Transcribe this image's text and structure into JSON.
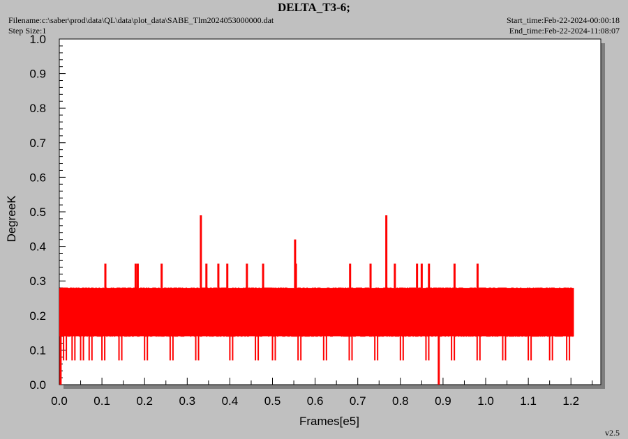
{
  "header": {
    "filename": "Filename:c:\\saber\\prod\\data\\QL\\data\\plot_data\\SABE_Tlm2024053000000.dat",
    "step_size": "Step Size:1",
    "start_time": "Start_time:Feb-22-2024-00:00:18",
    "end_time": "End_time:Feb-22-2024-11:08:07"
  },
  "version": "v2.5",
  "chart_data": {
    "type": "line",
    "title": "DELTA_T3-6;",
    "xlabel": "Frames[e5]",
    "ylabel": "DegreeK",
    "xlim": [
      0.0,
      1.27
    ],
    "ylim": [
      0.0,
      1.0
    ],
    "x_ticks": [
      "0.0",
      "0.1",
      "0.2",
      "0.3",
      "0.4",
      "0.5",
      "0.6",
      "0.7",
      "0.8",
      "0.9",
      "1.0",
      "1.1",
      "1.2"
    ],
    "y_ticks": [
      "0.0",
      "0.1",
      "0.2",
      "0.3",
      "0.4",
      "0.5",
      "0.6",
      "0.7",
      "0.8",
      "0.9",
      "1.0"
    ],
    "grid": false,
    "line_color": "#ff0000",
    "series": [
      {
        "x_range": [
          0.0,
          1.207
        ],
        "baseline_band": [
          0.14,
          0.28
        ],
        "typical_values": [
          0.14,
          0.21,
          0.28
        ],
        "spikes": [
          {
            "x": 0.003,
            "y": 0.0
          },
          {
            "x": 0.108,
            "y": 0.35
          },
          {
            "x": 0.179,
            "y": 0.35
          },
          {
            "x": 0.184,
            "y": 0.35
          },
          {
            "x": 0.24,
            "y": 0.35
          },
          {
            "x": 0.332,
            "y": 0.49
          },
          {
            "x": 0.345,
            "y": 0.35
          },
          {
            "x": 0.373,
            "y": 0.35
          },
          {
            "x": 0.394,
            "y": 0.35
          },
          {
            "x": 0.44,
            "y": 0.35
          },
          {
            "x": 0.478,
            "y": 0.35
          },
          {
            "x": 0.553,
            "y": 0.42
          },
          {
            "x": 0.555,
            "y": 0.35
          },
          {
            "x": 0.682,
            "y": 0.35
          },
          {
            "x": 0.73,
            "y": 0.35
          },
          {
            "x": 0.767,
            "y": 0.49
          },
          {
            "x": 0.787,
            "y": 0.35
          },
          {
            "x": 0.839,
            "y": 0.35
          },
          {
            "x": 0.85,
            "y": 0.35
          },
          {
            "x": 0.867,
            "y": 0.35
          },
          {
            "x": 0.89,
            "y": 0.0
          },
          {
            "x": 0.927,
            "y": 0.35
          },
          {
            "x": 0.981,
            "y": 0.35
          }
        ],
        "dips": [
          {
            "x": 0.01,
            "y": 0.07
          },
          {
            "x": 0.03,
            "y": 0.07
          },
          {
            "x": 0.05,
            "y": 0.07
          },
          {
            "x": 0.07,
            "y": 0.07
          },
          {
            "x": 0.1,
            "y": 0.07
          },
          {
            "x": 0.14,
            "y": 0.07
          },
          {
            "x": 0.2,
            "y": 0.07
          },
          {
            "x": 0.26,
            "y": 0.07
          },
          {
            "x": 0.32,
            "y": 0.07
          },
          {
            "x": 0.4,
            "y": 0.07
          },
          {
            "x": 0.46,
            "y": 0.07
          },
          {
            "x": 0.5,
            "y": 0.07
          },
          {
            "x": 0.56,
            "y": 0.07
          },
          {
            "x": 0.62,
            "y": 0.07
          },
          {
            "x": 0.68,
            "y": 0.07
          },
          {
            "x": 0.74,
            "y": 0.07
          },
          {
            "x": 0.8,
            "y": 0.07
          },
          {
            "x": 0.86,
            "y": 0.07
          },
          {
            "x": 0.92,
            "y": 0.07
          },
          {
            "x": 0.98,
            "y": 0.07
          },
          {
            "x": 1.04,
            "y": 0.07
          },
          {
            "x": 1.1,
            "y": 0.07
          },
          {
            "x": 1.15,
            "y": 0.07
          },
          {
            "x": 1.19,
            "y": 0.07
          }
        ]
      }
    ]
  }
}
